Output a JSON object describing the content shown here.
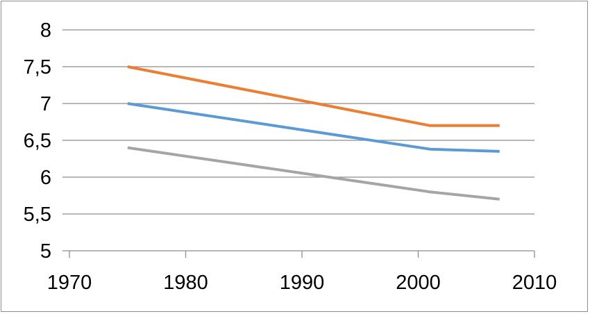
{
  "chart_data": {
    "type": "line",
    "title": "",
    "xlabel": "",
    "ylabel": "",
    "xlim": [
      1970,
      2010
    ],
    "ylim": [
      5,
      8
    ],
    "x_ticks": [
      1970,
      1980,
      1990,
      2000,
      2010
    ],
    "x_tick_labels": [
      "1970",
      "1980",
      "1990",
      "2000",
      "2010"
    ],
    "y_ticks": [
      5,
      5.5,
      6,
      6.5,
      7,
      7.5,
      8
    ],
    "y_tick_labels": [
      "5",
      "5,5",
      "6",
      "6,5",
      "7",
      "7,5",
      "8"
    ],
    "grid": "horizontal",
    "legend": "none",
    "series": [
      {
        "color": "#ED7D31",
        "points": [
          [
            1975,
            7.5
          ],
          [
            2001,
            6.7
          ],
          [
            2007,
            6.7
          ]
        ]
      },
      {
        "color": "#5B9BD5",
        "points": [
          [
            1975,
            7.0
          ],
          [
            2001,
            6.38
          ],
          [
            2007,
            6.35
          ]
        ]
      },
      {
        "color": "#A5A5A5",
        "points": [
          [
            1975,
            6.4
          ],
          [
            2001,
            5.8
          ],
          [
            2007,
            5.7
          ]
        ]
      }
    ]
  }
}
